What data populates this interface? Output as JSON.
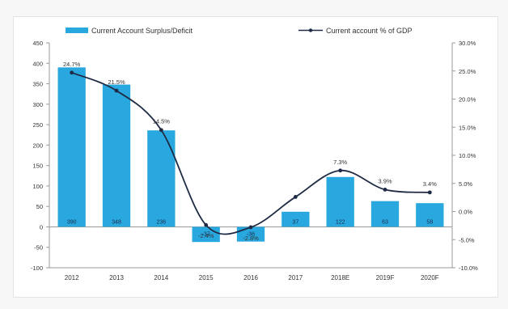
{
  "chart_data": {
    "type": "bar+line",
    "title": "",
    "categories": [
      "2012",
      "2013",
      "2014",
      "2015",
      "2016",
      "2017",
      "2018E",
      "2019F",
      "2020F"
    ],
    "series": [
      {
        "name": "Current Account Surplus/Deficit",
        "type": "bar",
        "axis": "left",
        "values": [
          390,
          348,
          236,
          -37,
          -36,
          37,
          122,
          63,
          58
        ],
        "value_labels": [
          "390",
          "348",
          "236",
          "-37",
          "-36",
          "37",
          "122",
          "63",
          "58"
        ]
      },
      {
        "name": "Current account % of GDP",
        "type": "line",
        "axis": "right",
        "values": [
          24.7,
          21.5,
          14.5,
          -2.4,
          -2.8,
          2.6,
          7.3,
          3.9,
          3.4
        ],
        "value_labels": [
          "24.7%",
          "21.5%",
          "14.5%",
          "-2.4%",
          "-2.8%",
          "",
          "7.3%",
          "3.9%",
          "3.4%"
        ]
      }
    ],
    "y_left": {
      "min": -100,
      "max": 450,
      "ticks": [
        "450",
        "400",
        "350",
        "300",
        "250",
        "200",
        "150",
        "100",
        "50",
        "0",
        "-50",
        "-100"
      ]
    },
    "y_right": {
      "min": -10,
      "max": 30,
      "ticks": [
        "30.0%",
        "25.0%",
        "20.0%",
        "15.0%",
        "10.0%",
        "5.0%",
        "0.0%",
        "-5.0%",
        "-10.0%"
      ]
    },
    "legend_position": "top",
    "grid": false
  },
  "colors": {
    "bar": "#29a8e0",
    "line": "#1f2a44",
    "axis": "#9a9a9a",
    "text": "#333333"
  }
}
